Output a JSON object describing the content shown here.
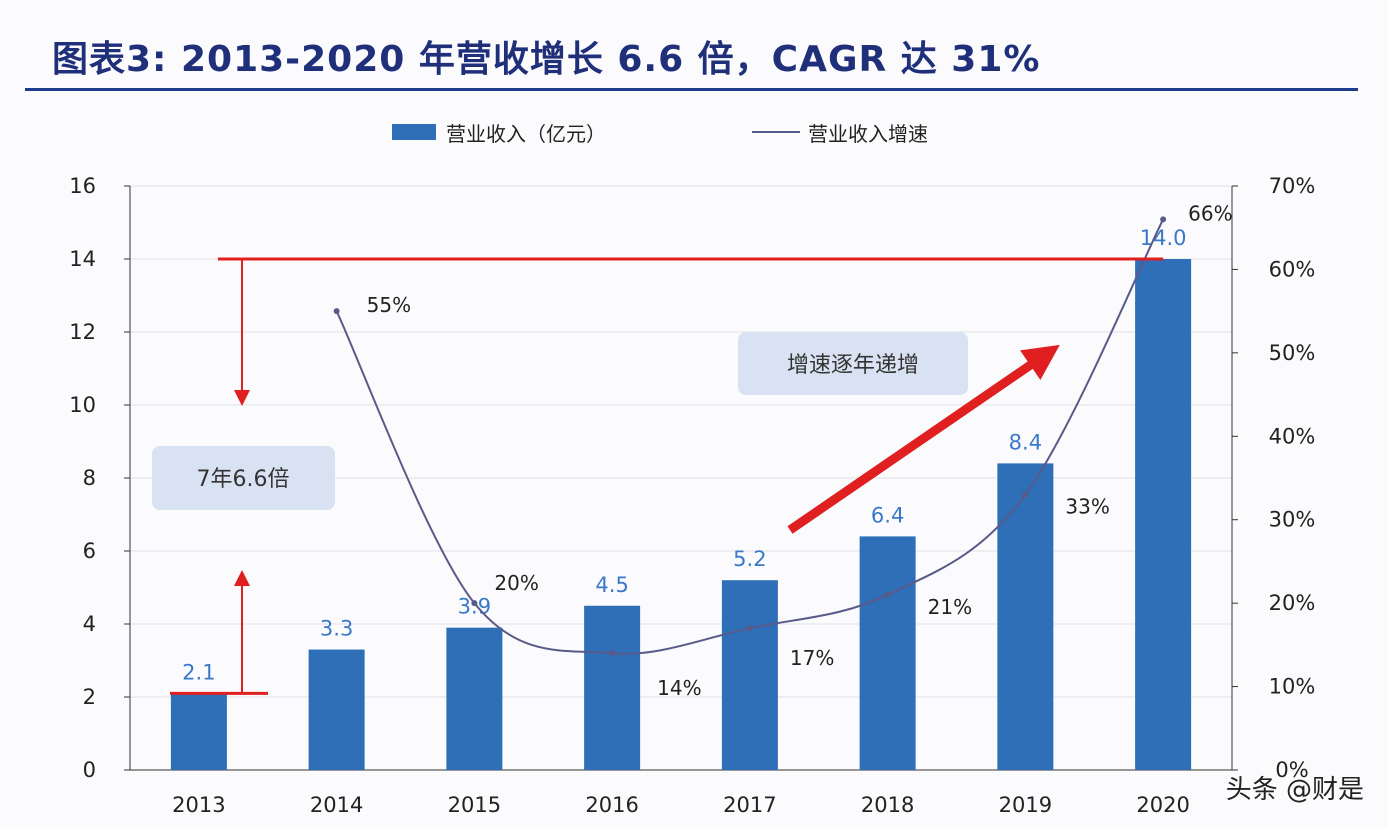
{
  "title": "图表3:   2013-2020 年营收增长 6.6 倍，CAGR 达 31%",
  "chart_data": {
    "type": "bar+line",
    "title": "图表3:   2013-2020 年营收增长 6.6 倍，CAGR 达 31%",
    "categories": [
      "2013",
      "2014",
      "2015",
      "2016",
      "2017",
      "2018",
      "2019",
      "2020"
    ],
    "series": [
      {
        "name": "营业收入（亿元）",
        "type": "bar",
        "axis": "left",
        "values": [
          2.1,
          3.3,
          3.9,
          4.5,
          5.2,
          6.4,
          8.4,
          14.0
        ],
        "labels": [
          "2.1",
          "3.3",
          "3.9",
          "4.5",
          "5.2",
          "6.4",
          "8.4",
          "14.0"
        ],
        "color": "#2e6fb8"
      },
      {
        "name": "营业收入增速",
        "type": "line",
        "axis": "right",
        "values": [
          null,
          55,
          20,
          14,
          17,
          21,
          33,
          66
        ],
        "labels": [
          "",
          "55%",
          "20%",
          "14%",
          "17%",
          "21%",
          "33%",
          "66%"
        ],
        "color": "#5a5a8a"
      }
    ],
    "left_axis": {
      "ylim": [
        0,
        16
      ],
      "ticks": [
        "0",
        "2",
        "4",
        "6",
        "8",
        "10",
        "12",
        "14",
        "16"
      ]
    },
    "right_axis": {
      "ylim": [
        0,
        70
      ],
      "ticks": [
        "0%",
        "10%",
        "20%",
        "30%",
        "40%",
        "50%",
        "60%",
        "70%"
      ]
    },
    "grid": true,
    "legend": "top-center",
    "annotations": [
      "7年6.6倍",
      "增速逐年递增"
    ],
    "annotation_color": "#e02020"
  },
  "watermark": "头条 @财是"
}
